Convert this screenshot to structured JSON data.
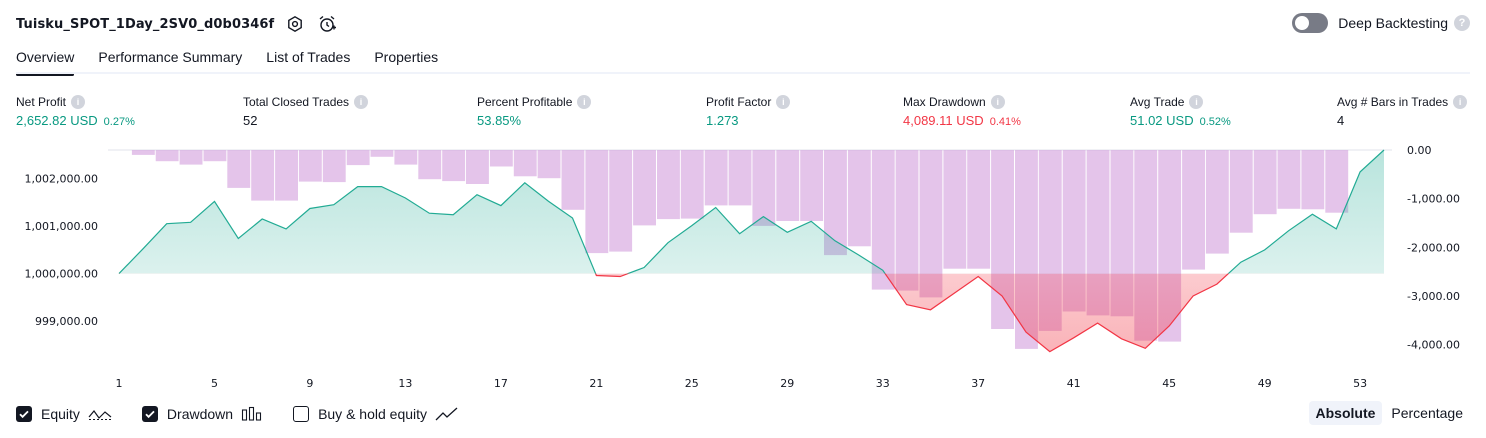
{
  "header": {
    "title": "Tuisku_SPOT_1Day_2SV0_d0b0346f",
    "deep_backtesting": {
      "label": "Deep Backtesting",
      "enabled": false
    }
  },
  "tabs": [
    {
      "label": "Overview",
      "active": true
    },
    {
      "label": "Performance Summary",
      "active": false
    },
    {
      "label": "List of Trades",
      "active": false
    },
    {
      "label": "Properties",
      "active": false
    }
  ],
  "stats": [
    {
      "label": "Net Profit",
      "value": "2,652.82 USD",
      "percent": "0.27%",
      "tone": "green"
    },
    {
      "label": "Total Closed Trades",
      "value": "52",
      "percent": "",
      "tone": "dark"
    },
    {
      "label": "Percent Profitable",
      "value": "53.85%",
      "percent": "",
      "tone": "green"
    },
    {
      "label": "Profit Factor",
      "value": "1.273",
      "percent": "",
      "tone": "green"
    },
    {
      "label": "Max Drawdown",
      "value": "4,089.11 USD",
      "percent": "0.41%",
      "tone": "red"
    },
    {
      "label": "Avg Trade",
      "value": "51.02 USD",
      "percent": "0.52%",
      "tone": "green"
    },
    {
      "label": "Avg # Bars in Trades",
      "value": "4",
      "percent": "",
      "tone": "dark"
    }
  ],
  "chart_data": {
    "type": "area",
    "x_ticks": [
      "1",
      "5",
      "9",
      "13",
      "17",
      "21",
      "25",
      "29",
      "33",
      "37",
      "41",
      "45",
      "49",
      "53"
    ],
    "equity_baseline": 1000000,
    "left_axis": {
      "ticks": [
        "1,002,000.00",
        "1,001,000.00",
        "1,000,000.00",
        "999,000.00"
      ],
      "values": [
        1002000,
        1001000,
        1000000,
        999000
      ],
      "range": [
        998100,
        1002600
      ]
    },
    "right_axis": {
      "ticks": [
        "0.00",
        "-1,000.00",
        "-2,000.00",
        "-3,000.00",
        "-4,000.00"
      ],
      "values": [
        0,
        -1000,
        -2000,
        -3000,
        -4000
      ],
      "range": [
        -4400,
        0
      ]
    },
    "series": [
      {
        "name": "Equity",
        "type": "line",
        "colors": {
          "up": "#22ab94",
          "down": "#f23645"
        },
        "values": [
          1000000,
          1000520,
          1001050,
          1001080,
          1001520,
          1000740,
          1001150,
          1000940,
          1001370,
          1001450,
          1001830,
          1001830,
          1001590,
          1001270,
          1001240,
          1001660,
          1001430,
          1001910,
          1001520,
          1001170,
          999960,
          999940,
          1000130,
          1000650,
          1001010,
          1001390,
          1000840,
          1001200,
          1000870,
          1001100,
          1000690,
          1000390,
          1000070,
          999350,
          999240,
          999590,
          999940,
          999530,
          998770,
          998360,
          998650,
          998960,
          998630,
          998430,
          998900,
          999530,
          999780,
          1000240,
          1000500,
          1000900,
          1001250,
          1000940,
          1002140,
          1002600
        ]
      },
      {
        "name": "Drawdown",
        "type": "bar",
        "color": "#ce93d8",
        "values": [
          0,
          -100,
          -230,
          -300,
          -230,
          -780,
          -1040,
          -1040,
          -650,
          -660,
          -310,
          -140,
          -300,
          -600,
          -640,
          -700,
          -340,
          -540,
          -580,
          -1230,
          -2120,
          -2090,
          -1550,
          -1420,
          -1410,
          -1140,
          -1140,
          -1560,
          -1460,
          -1460,
          -2160,
          -1980,
          -2870,
          -2890,
          -3030,
          -2440,
          -2440,
          -3680,
          -4089,
          -3720,
          -3320,
          -3400,
          -3420,
          -3920,
          -3940,
          -2460,
          -2130,
          -1700,
          -1320,
          -1210,
          -1220,
          -1290,
          0
        ]
      },
      {
        "name": "Buy & hold equity",
        "type": "line",
        "visible": false,
        "values": []
      }
    ]
  },
  "legend": [
    {
      "label": "Equity",
      "checked": true
    },
    {
      "label": "Drawdown",
      "checked": true
    },
    {
      "label": "Buy & hold equity",
      "checked": false
    }
  ],
  "mode": [
    {
      "label": "Absolute",
      "active": true
    },
    {
      "label": "Percentage",
      "active": false
    }
  ]
}
